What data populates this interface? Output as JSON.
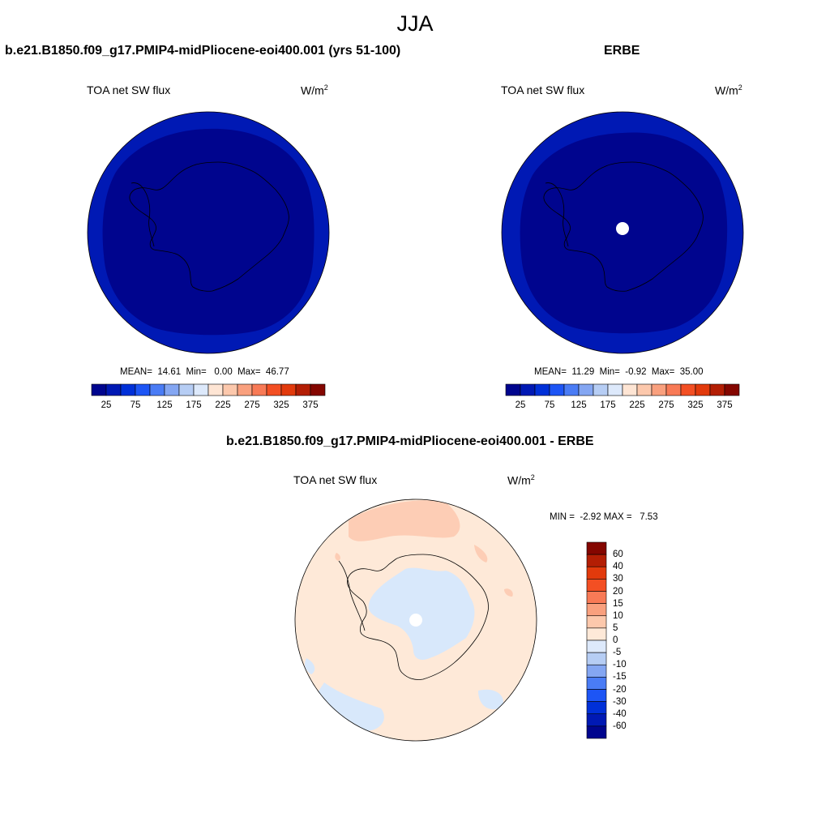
{
  "figure": {
    "title": "JJA"
  },
  "panels": [
    {
      "id": "model",
      "case_title": "b.e21.B1850.f09_g17.PMIP4-midPliocene-eoi400.001 (yrs 51-100)",
      "variable": "TOA net SW flux",
      "units_base": "W/m",
      "units_exp": "2",
      "stats": "MEAN=  14.61  Min=   0.00  Max=  46.77",
      "fill_inner": "#00058e",
      "fill_outer": "#0019b4",
      "missing_pole": false
    },
    {
      "id": "obs",
      "case_title": "ERBE",
      "variable": "TOA net SW flux",
      "units_base": "W/m",
      "units_exp": "2",
      "stats": "MEAN=  11.29  Min=  -0.92  Max=  35.00",
      "fill_inner": "#00058e",
      "fill_outer": "#0019b4",
      "missing_pole": true
    }
  ],
  "colorbar_abs": {
    "labels": [
      "25",
      "75",
      "125",
      "175",
      "225",
      "275",
      "325",
      "375"
    ],
    "colors": [
      "#00058e",
      "#0019b4",
      "#0030d8",
      "#1d55f5",
      "#4a7cf5",
      "#84a6f2",
      "#b6cdf4",
      "#dde9fb",
      "#fee5d4",
      "#fcc8ac",
      "#f9a07e",
      "#f87a56",
      "#f34f23",
      "#e23a0c",
      "#b31e04",
      "#840600"
    ]
  },
  "diff_panel": {
    "case_title": "b.e21.B1850.f09_g17.PMIP4-midPliocene-eoi400.001 - ERBE",
    "variable": "TOA net SW flux",
    "units_base": "W/m",
    "units_exp": "2",
    "stats": "MIN =  -2.92 MAX =   7.53",
    "base_fill": "#fee9d8",
    "pos_fill": "#fdcdb5",
    "neg_fill": "#d8e8fb",
    "missing_pole": true
  },
  "colorbar_diff": {
    "labels": [
      "60",
      "40",
      "30",
      "20",
      "15",
      "10",
      "5",
      "0",
      "-5",
      "-10",
      "-15",
      "-20",
      "-30",
      "-40",
      "-60"
    ],
    "colors": [
      "#840600",
      "#b31e04",
      "#e23a0c",
      "#f34f23",
      "#f87a56",
      "#f9a07e",
      "#fcc8ac",
      "#fee9d8",
      "#dde9fb",
      "#b6cdf4",
      "#84a6f2",
      "#4a7cf5",
      "#1d55f5",
      "#0030d8",
      "#0019b4",
      "#00058e"
    ]
  }
}
